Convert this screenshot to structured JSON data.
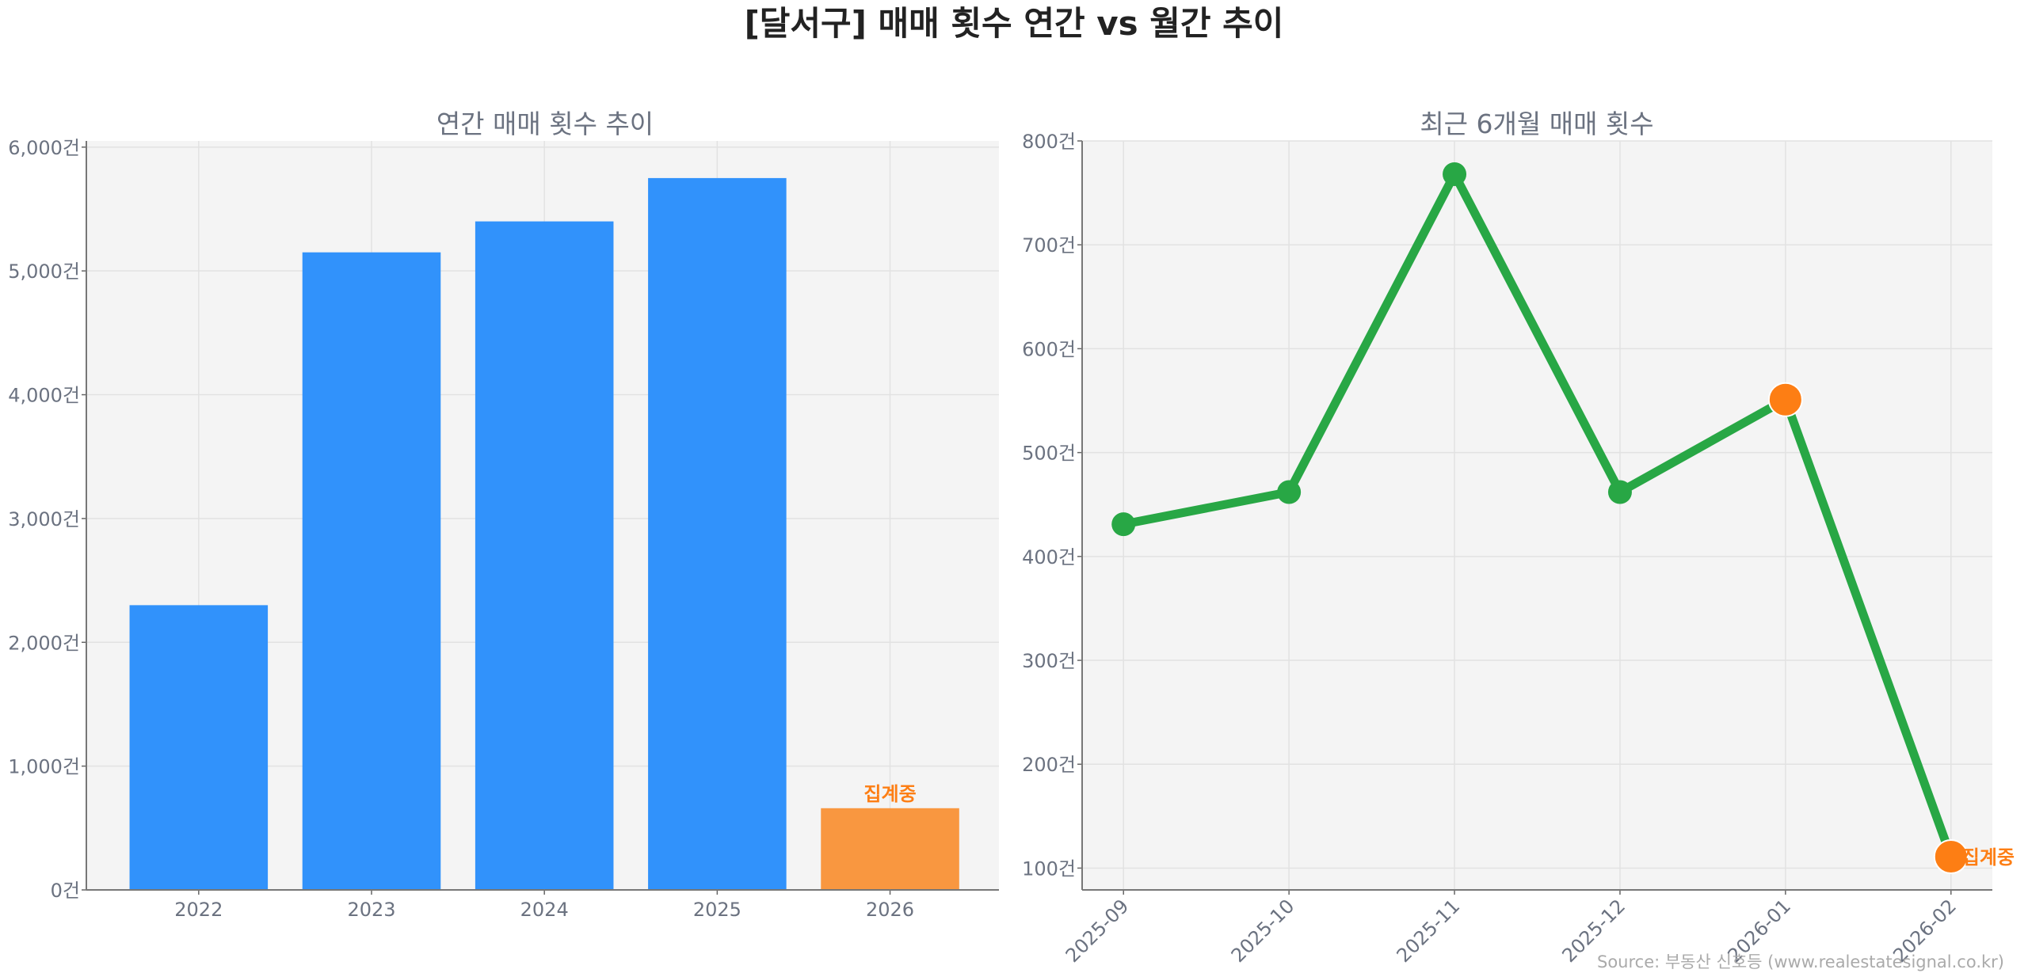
{
  "title": "[달서구] 매매 횟수 연간 vs 월간 추이",
  "source": "Source: 부동산 신호등 (www.realestatesignal.co.kr)",
  "chart_data": [
    {
      "type": "bar",
      "title": "연간 매매 횟수 추이",
      "categories": [
        "2022",
        "2023",
        "2024",
        "2025",
        "2026"
      ],
      "values": [
        2300,
        5150,
        5400,
        5750,
        660
      ],
      "bar_colors": [
        "#3192fb",
        "#3192fb",
        "#3192fb",
        "#3192fb",
        "#f99740"
      ],
      "ylim": [
        0,
        6050
      ],
      "yticks": [
        0,
        1000,
        2000,
        3000,
        4000,
        5000,
        6000
      ],
      "ytick_labels": [
        "0건",
        "1,000건",
        "2,000건",
        "3,000건",
        "4,000건",
        "5,000건",
        "6,000건"
      ],
      "annotations": [
        {
          "category": "2026",
          "text": "집계중",
          "color": "#fd7e14"
        }
      ],
      "grid": true
    },
    {
      "type": "line",
      "title": "최근 6개월 매매 횟수",
      "categories": [
        "2025-09",
        "2025-10",
        "2025-11",
        "2025-12",
        "2026-01",
        "2026-02"
      ],
      "values": [
        431,
        462,
        768,
        462,
        551,
        111
      ],
      "line_color": "#28a745",
      "marker_colors": [
        "#28a745",
        "#28a745",
        "#28a745",
        "#28a745",
        "#fd7e14",
        "#fd7e14"
      ],
      "ylim": [
        79,
        800
      ],
      "yticks": [
        100,
        200,
        300,
        400,
        500,
        600,
        700,
        800
      ],
      "ytick_labels": [
        "100건",
        "200건",
        "300건",
        "400건",
        "500건",
        "600건",
        "700건",
        "800건"
      ],
      "annotations": [
        {
          "category": "2026-02",
          "text": "집계중",
          "color": "#fd7e14"
        }
      ],
      "grid": true
    }
  ]
}
